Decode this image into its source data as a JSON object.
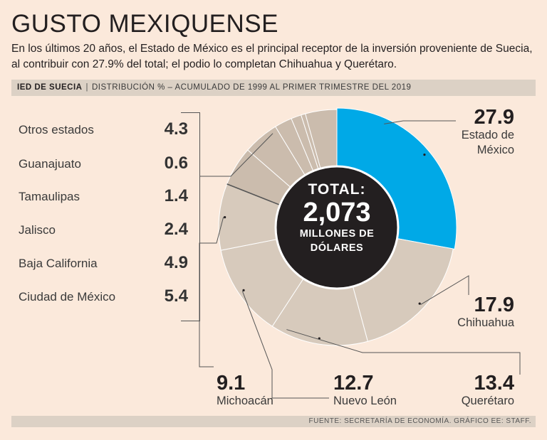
{
  "title": "GUSTO MEXIQUENSE",
  "subtitle": "En los últimos 20 años, el Estado de México es el principal receptor de la inversión proveniente de Suecia, al contribuir con 27.9% del total; el podio lo completan Chihuahua y Querétaro.",
  "band": {
    "label": "IED DE SUECIA",
    "separator": "|",
    "description": "DISTRIBUCIÓN % – ACUMULADO DE 1999 AL PRIMER TRIMESTRE DEL 2019"
  },
  "center": {
    "line1": "TOTAL:",
    "line2": "2,073",
    "line3": "MILLONES DE",
    "line4": "DÓLARES"
  },
  "footer": "FUENTE: SECRETARÍA DE ECONOMÍA. GRÁFICO EE: STAFF.",
  "colors": {
    "background": "#fbe9db",
    "highlight": "#00a9e7",
    "slice": "#d7cabc",
    "slice_dark": "#cbbcad",
    "center": "#231f20",
    "band": "#dcd1c5"
  },
  "chart_data": {
    "type": "pie",
    "title": "IED DE SUECIA",
    "subtitle": "DISTRIBUCIÓN % – ACUMULADO DE 1999 AL PRIMER TRIMESTRE DEL 2019",
    "unit": "%",
    "total_label": "TOTAL: 2,073 MILLONES DE DÓLARES",
    "slices": [
      {
        "label": "Estado de México",
        "value": 27.9,
        "highlight": true
      },
      {
        "label": "Chihuahua",
        "value": 17.9
      },
      {
        "label": "Querétaro",
        "value": 13.4
      },
      {
        "label": "Nuevo León",
        "value": 12.7
      },
      {
        "label": "Michoacán",
        "value": 9.1
      },
      {
        "label": "Ciudad de México",
        "value": 5.4
      },
      {
        "label": "Baja California",
        "value": 4.9
      },
      {
        "label": "Jalisco",
        "value": 2.4
      },
      {
        "label": "Tamaulipas",
        "value": 1.4
      },
      {
        "label": "Guanajuato",
        "value": 0.6
      },
      {
        "label": "Otros estados",
        "value": 4.3
      }
    ],
    "side_list": [
      {
        "label": "Otros estados",
        "value": "4.3"
      },
      {
        "label": "Guanajuato",
        "value": "0.6"
      },
      {
        "label": "Tamaulipas",
        "value": "1.4"
      },
      {
        "label": "Jalisco",
        "value": "2.4"
      },
      {
        "label": "Baja California",
        "value": "4.9"
      },
      {
        "label": "Ciudad de México",
        "value": "5.4"
      }
    ],
    "callouts": {
      "edomex": {
        "value": "27.9",
        "line1": "Estado de",
        "line2": "México"
      },
      "chihuahua": {
        "value": "17.9",
        "name": "Chihuahua"
      },
      "queretaro": {
        "value": "13.4",
        "name": "Querétaro"
      },
      "nuevoleon": {
        "value": "12.7",
        "name": "Nuevo León"
      },
      "michoacan": {
        "value": "9.1",
        "name": "Michoacán"
      }
    }
  }
}
